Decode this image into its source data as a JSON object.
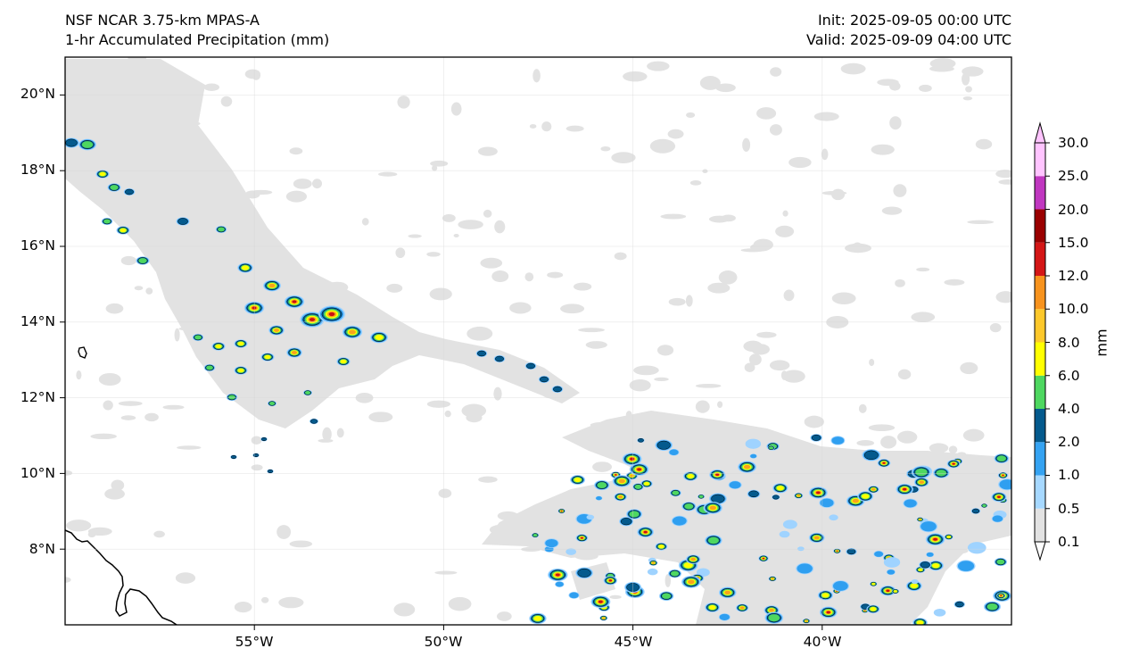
{
  "header": {
    "left_line1": "NSF NCAR 3.75-km MPAS-A",
    "left_line2": "1-hr Accumulated Precipitation (mm)",
    "right_line1": "Init: 2025-09-05 00:00 UTC",
    "right_line2": "Valid: 2025-09-09 04:00 UTC"
  },
  "map": {
    "extent": {
      "lon_min": -60.0,
      "lon_max": -35.0,
      "lat_min": 6.0,
      "lat_max": 21.0
    },
    "lat_ticks": [
      "20°N",
      "18°N",
      "16°N",
      "14°N",
      "12°N",
      "10°N",
      "8°N"
    ],
    "lon_ticks": [
      "55°W",
      "50°W",
      "45°W",
      "40°W"
    ],
    "gridlines": true,
    "field_colors": {
      "trace": "#e2e2e2",
      "light": "#9fd3ff",
      "moderate": "#2f9ff0",
      "deep": "#045a8d",
      "green": "#4ed760",
      "yellow": "#ffff00",
      "orange": "#f7a41d",
      "red": "#cc1111"
    }
  },
  "colorbar": {
    "units": "mm",
    "levels": [
      "0.1",
      "0.5",
      "1.0",
      "2.0",
      "4.0",
      "6.0",
      "8.0",
      "10.0",
      "12.0",
      "15.0",
      "20.0",
      "25.0",
      "30.0"
    ],
    "colors": [
      "#e2e2e2",
      "#a6d8ff",
      "#35a3f2",
      "#045a8d",
      "#4ed760",
      "#ffff00",
      "#fdc82b",
      "#f7931e",
      "#d41616",
      "#9a0000",
      "#c037c0",
      "#ffc4ff"
    ]
  }
}
